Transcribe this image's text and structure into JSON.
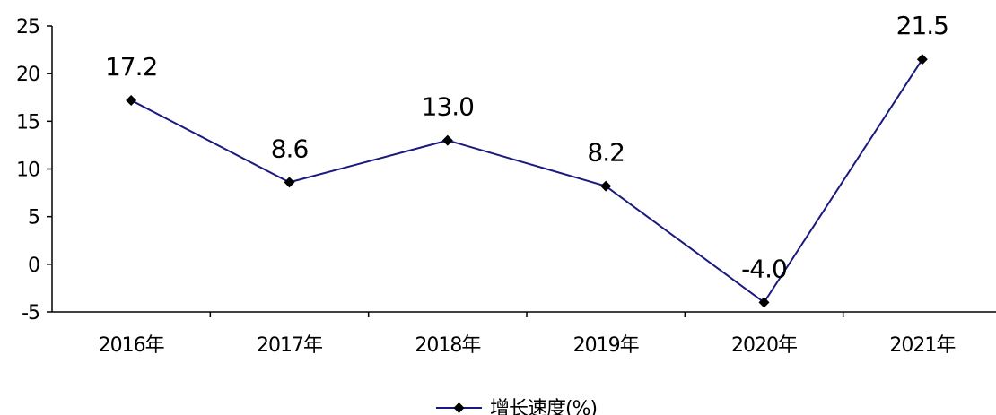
{
  "chart_data": {
    "type": "line",
    "categories": [
      "2016年",
      "2017年",
      "2018年",
      "2019年",
      "2020年",
      "2021年"
    ],
    "series": [
      {
        "name": "增长速度(%)",
        "values": [
          17.2,
          8.6,
          13.0,
          8.2,
          -4.0,
          21.5
        ],
        "color": "#1a1a7e",
        "marker": "diamond"
      }
    ],
    "data_labels": [
      "17.2",
      "8.6",
      "13.0",
      "8.2",
      "-4.0",
      "21.5"
    ],
    "yticks": [
      "25",
      "20",
      "15",
      "10",
      "5",
      "0",
      "-5"
    ],
    "ylim": [
      -5,
      25
    ],
    "title": "",
    "xlabel": "",
    "ylabel": "",
    "grid": false,
    "legend_position": "bottom-center"
  }
}
